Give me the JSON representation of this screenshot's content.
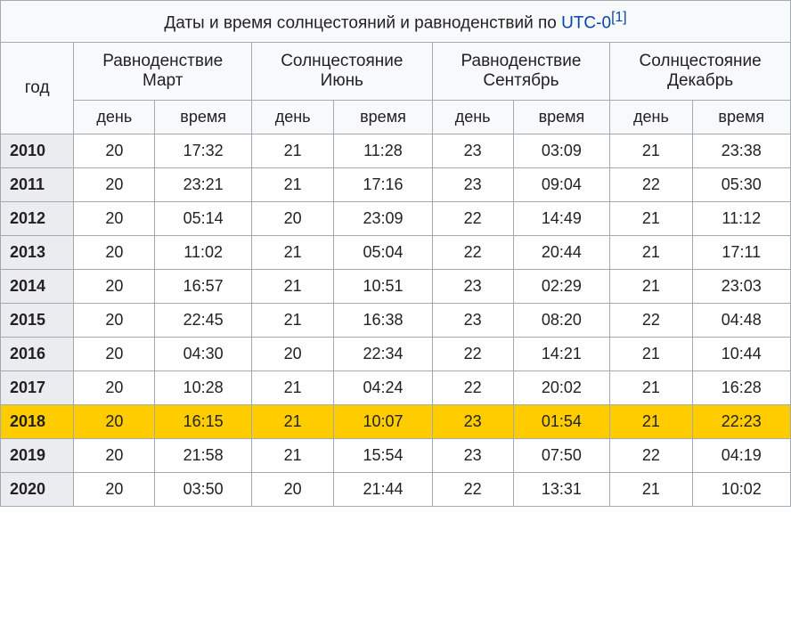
{
  "caption": {
    "prefix": "Даты и время солнцестояний и равноденствий по ",
    "link_text": "UTC-0",
    "ref": "[1]"
  },
  "headers": {
    "year": "год",
    "groups": [
      {
        "line1": "Равноденствие",
        "line2": "Март"
      },
      {
        "line1": "Солнцестояние",
        "line2": "Июнь"
      },
      {
        "line1": "Равноденствие",
        "line2": "Сентябрь"
      },
      {
        "line1": "Солнцестояние",
        "line2": "Декабрь"
      }
    ],
    "sub": {
      "day": "день",
      "time": "время"
    }
  },
  "highlight_year": "2018",
  "colors": {
    "header_bg": "#f8f9fa",
    "cell_bg": "#ffffff",
    "year_bg": "#eaecf0",
    "highlight_bg": "#ffcc00",
    "border": "#a2a9b1",
    "link": "#0645ad",
    "text": "#222222"
  },
  "rows": [
    {
      "year": "2010",
      "cells": [
        "20",
        "17:32",
        "21",
        "11:28",
        "23",
        "03:09",
        "21",
        "23:38"
      ]
    },
    {
      "year": "2011",
      "cells": [
        "20",
        "23:21",
        "21",
        "17:16",
        "23",
        "09:04",
        "22",
        "05:30"
      ]
    },
    {
      "year": "2012",
      "cells": [
        "20",
        "05:14",
        "20",
        "23:09",
        "22",
        "14:49",
        "21",
        "11:12"
      ]
    },
    {
      "year": "2013",
      "cells": [
        "20",
        "11:02",
        "21",
        "05:04",
        "22",
        "20:44",
        "21",
        "17:11"
      ]
    },
    {
      "year": "2014",
      "cells": [
        "20",
        "16:57",
        "21",
        "10:51",
        "23",
        "02:29",
        "21",
        "23:03"
      ]
    },
    {
      "year": "2015",
      "cells": [
        "20",
        "22:45",
        "21",
        "16:38",
        "23",
        "08:20",
        "22",
        "04:48"
      ]
    },
    {
      "year": "2016",
      "cells": [
        "20",
        "04:30",
        "20",
        "22:34",
        "22",
        "14:21",
        "21",
        "10:44"
      ]
    },
    {
      "year": "2017",
      "cells": [
        "20",
        "10:28",
        "21",
        "04:24",
        "22",
        "20:02",
        "21",
        "16:28"
      ]
    },
    {
      "year": "2018",
      "cells": [
        "20",
        "16:15",
        "21",
        "10:07",
        "23",
        "01:54",
        "21",
        "22:23"
      ]
    },
    {
      "year": "2019",
      "cells": [
        "20",
        "21:58",
        "21",
        "15:54",
        "23",
        "07:50",
        "22",
        "04:19"
      ]
    },
    {
      "year": "2020",
      "cells": [
        "20",
        "03:50",
        "20",
        "21:44",
        "22",
        "13:31",
        "21",
        "10:02"
      ]
    }
  ]
}
